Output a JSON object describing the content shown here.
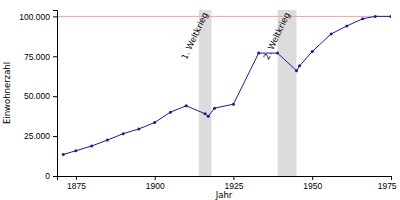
{
  "chart_data": {
    "type": "line",
    "x_label": "Jahr",
    "y_label": "Einwohnerzahl",
    "x": [
      1871,
      1875,
      1880,
      1885,
      1890,
      1895,
      1900,
      1905,
      1910,
      1916,
      1917,
      1919,
      1925,
      1933,
      1939,
      1945,
      1946,
      1950,
      1956,
      1961,
      1966,
      1970,
      1975
    ],
    "series": [
      {
        "name": "Einwohnerzahl",
        "color": "#1c1c96",
        "marker": "circle",
        "values": [
          13500,
          15800,
          18800,
          22500,
          26500,
          29500,
          33500,
          40000,
          44000,
          39000,
          37500,
          42500,
          45000,
          77000,
          77000,
          66000,
          69000,
          78000,
          89000,
          94000,
          98500,
          100000,
          100000
        ]
      }
    ],
    "xlim": [
      1869,
      1975
    ],
    "xticks": [
      1875,
      1900,
      1925,
      1950,
      1975
    ],
    "ylim": [
      0,
      104000
    ],
    "yticks": [
      0,
      {
        "value": 25000,
        "label": "25.000"
      },
      {
        "value": 50000,
        "label": "50.000"
      },
      {
        "value": 75000,
        "label": "75.000"
      },
      {
        "value": 100000,
        "label": "100.000"
      }
    ],
    "grid": false,
    "bands": [
      {
        "x": [
          1914,
          1918
        ],
        "label": "1. Weltkrieg"
      },
      {
        "x": [
          1939,
          1945
        ],
        "label": "2. Weltkrieg"
      }
    ],
    "reference_lines": [
      {
        "y": 100000,
        "color": "#f2a0a0"
      }
    ]
  }
}
